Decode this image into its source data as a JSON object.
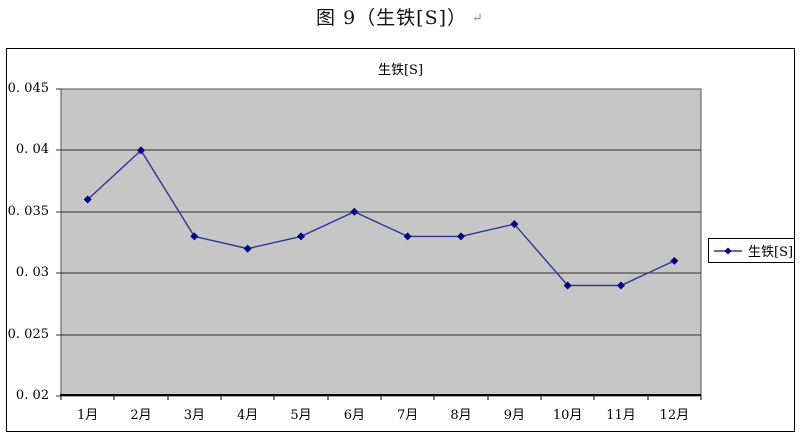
{
  "document": {
    "title": "图 9（生铁[S]）",
    "return_mark": "↵"
  },
  "chart_data": {
    "type": "line",
    "title": "生铁[S]",
    "categories": [
      "1月",
      "2月",
      "3月",
      "4月",
      "5月",
      "6月",
      "7月",
      "8月",
      "9月",
      "10月",
      "11月",
      "12月"
    ],
    "series": [
      {
        "name": "生铁[S]",
        "values": [
          0.036,
          0.04,
          0.033,
          0.032,
          0.033,
          0.035,
          0.033,
          0.033,
          0.034,
          0.029,
          0.029,
          0.031
        ]
      }
    ],
    "xlabel": "",
    "ylabel": "",
    "ylim": [
      0.02,
      0.045
    ],
    "yticks": [
      {
        "value": 0.02,
        "label": "0. 02"
      },
      {
        "value": 0.025,
        "label": "0. 025"
      },
      {
        "value": 0.03,
        "label": "0. 03"
      },
      {
        "value": 0.035,
        "label": "0. 035"
      },
      {
        "value": 0.04,
        "label": "0. 04"
      },
      {
        "value": 0.045,
        "label": "0. 045"
      }
    ],
    "grid": true,
    "legend_position": "right",
    "colors": {
      "line": "#333399",
      "marker": "#000080",
      "plot_bg": "#c6c6c6",
      "grid": "#303030",
      "plot_border": "#565656",
      "axis": "#000000"
    }
  }
}
